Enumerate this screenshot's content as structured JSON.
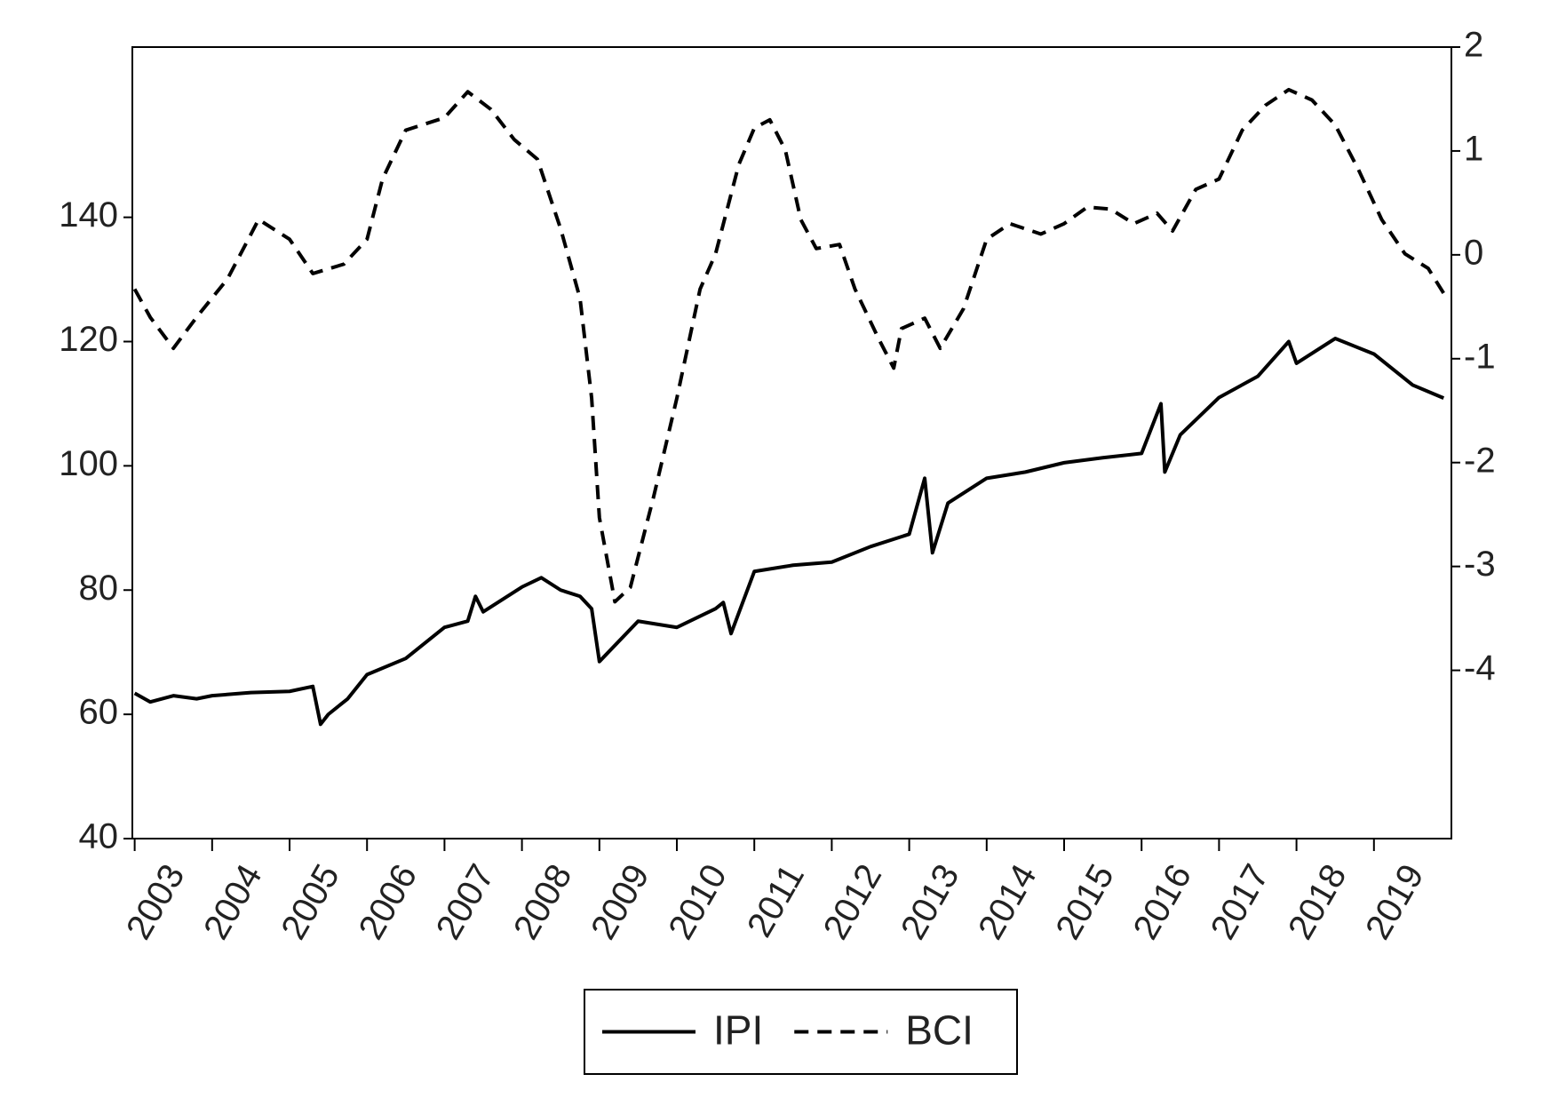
{
  "chart_data": {
    "type": "line",
    "xlim": [
      2002.97,
      2020
    ],
    "xticks": [
      2003,
      2004,
      2005,
      2006,
      2007,
      2008,
      2009,
      2010,
      2011,
      2012,
      2013,
      2014,
      2015,
      2016,
      2017,
      2018,
      2019
    ],
    "ylim": [
      40,
      167.4
    ],
    "yticks": [
      40,
      60,
      80,
      100,
      120,
      140
    ],
    "y2lim": [
      -5.62,
      2
    ],
    "y2ticks": [
      -4,
      -3,
      -2,
      -1,
      0,
      1,
      2
    ],
    "legend": "bottom",
    "series": [
      {
        "name": "IPI",
        "color": "#000000",
        "style": "solid",
        "x": [
          2003,
          2003.2,
          2003.5,
          2003.8,
          2004,
          2004.5,
          2005,
          2005.3,
          2005.4,
          2005.5,
          2005.75,
          2006,
          2006.5,
          2007,
          2007.3,
          2007.4,
          2007.5,
          2008,
          2008.25,
          2008.5,
          2008.75,
          2008.9,
          2009,
          2009.5,
          2010,
          2010.5,
          2010.6,
          2010.7,
          2011,
          2011.5,
          2012,
          2012.5,
          2013,
          2013.2,
          2013.3,
          2013.5,
          2014,
          2014.5,
          2015,
          2015.5,
          2016,
          2016.25,
          2016.3,
          2016.5,
          2017,
          2017.5,
          2017.9,
          2018,
          2018.5,
          2019,
          2019.5,
          2019.9
        ],
        "values": [
          63.4,
          62,
          63,
          62.5,
          63,
          63.5,
          63.7,
          64.5,
          58.4,
          60,
          62.5,
          66.4,
          69,
          74,
          75,
          79,
          76.5,
          80.5,
          82,
          80,
          79,
          77,
          68.5,
          75,
          74,
          77,
          78,
          73,
          83,
          84,
          84.5,
          87,
          89,
          98,
          86,
          94,
          98,
          99,
          100.5,
          101.3,
          102,
          110,
          99,
          105,
          111,
          114.4,
          120,
          116.5,
          120.5,
          118,
          113,
          110.9
        ]
      },
      {
        "name": "BCI",
        "color": "#000000",
        "style": "dashed",
        "axis": "y2",
        "x": [
          2003,
          2003.2,
          2003.5,
          2003.8,
          2004.2,
          2004.6,
          2005,
          2005.3,
          2005.7,
          2006,
          2006.2,
          2006.5,
          2007,
          2007.3,
          2007.6,
          2007.9,
          2008.2,
          2008.5,
          2008.75,
          2008.9,
          2009,
          2009.2,
          2009.4,
          2009.7,
          2010,
          2010.3,
          2010.5,
          2010.8,
          2011,
          2011.2,
          2011.4,
          2011.6,
          2011.8,
          2012.1,
          2012.3,
          2012.6,
          2012.8,
          2012.9,
          2013.2,
          2013.4,
          2013.7,
          2014,
          2014.3,
          2014.7,
          2015,
          2015.3,
          2015.6,
          2015.9,
          2016.2,
          2016.4,
          2016.7,
          2017,
          2017.3,
          2017.6,
          2017.9,
          2018.2,
          2018.5,
          2018.8,
          2019.1,
          2019.4,
          2019.7,
          2019.9
        ],
        "values": [
          -0.33,
          -0.6,
          -0.9,
          -0.6,
          -0.23,
          0.34,
          0.15,
          -0.18,
          -0.09,
          0.15,
          0.73,
          1.2,
          1.32,
          1.57,
          1.4,
          1.11,
          0.92,
          0.25,
          -0.42,
          -1.38,
          -2.53,
          -3.34,
          -3.2,
          -2.33,
          -1.38,
          -0.33,
          0.01,
          0.87,
          1.22,
          1.3,
          1.01,
          0.34,
          0.06,
          0.1,
          -0.33,
          -0.8,
          -1.09,
          -0.71,
          -0.61,
          -0.9,
          -0.52,
          0.15,
          0.3,
          0.2,
          0.3,
          0.46,
          0.44,
          0.3,
          0.4,
          0.23,
          0.63,
          0.73,
          1.2,
          1.44,
          1.59,
          1.49,
          1.25,
          0.82,
          0.34,
          0.01,
          -0.13,
          -0.37
        ]
      }
    ]
  }
}
